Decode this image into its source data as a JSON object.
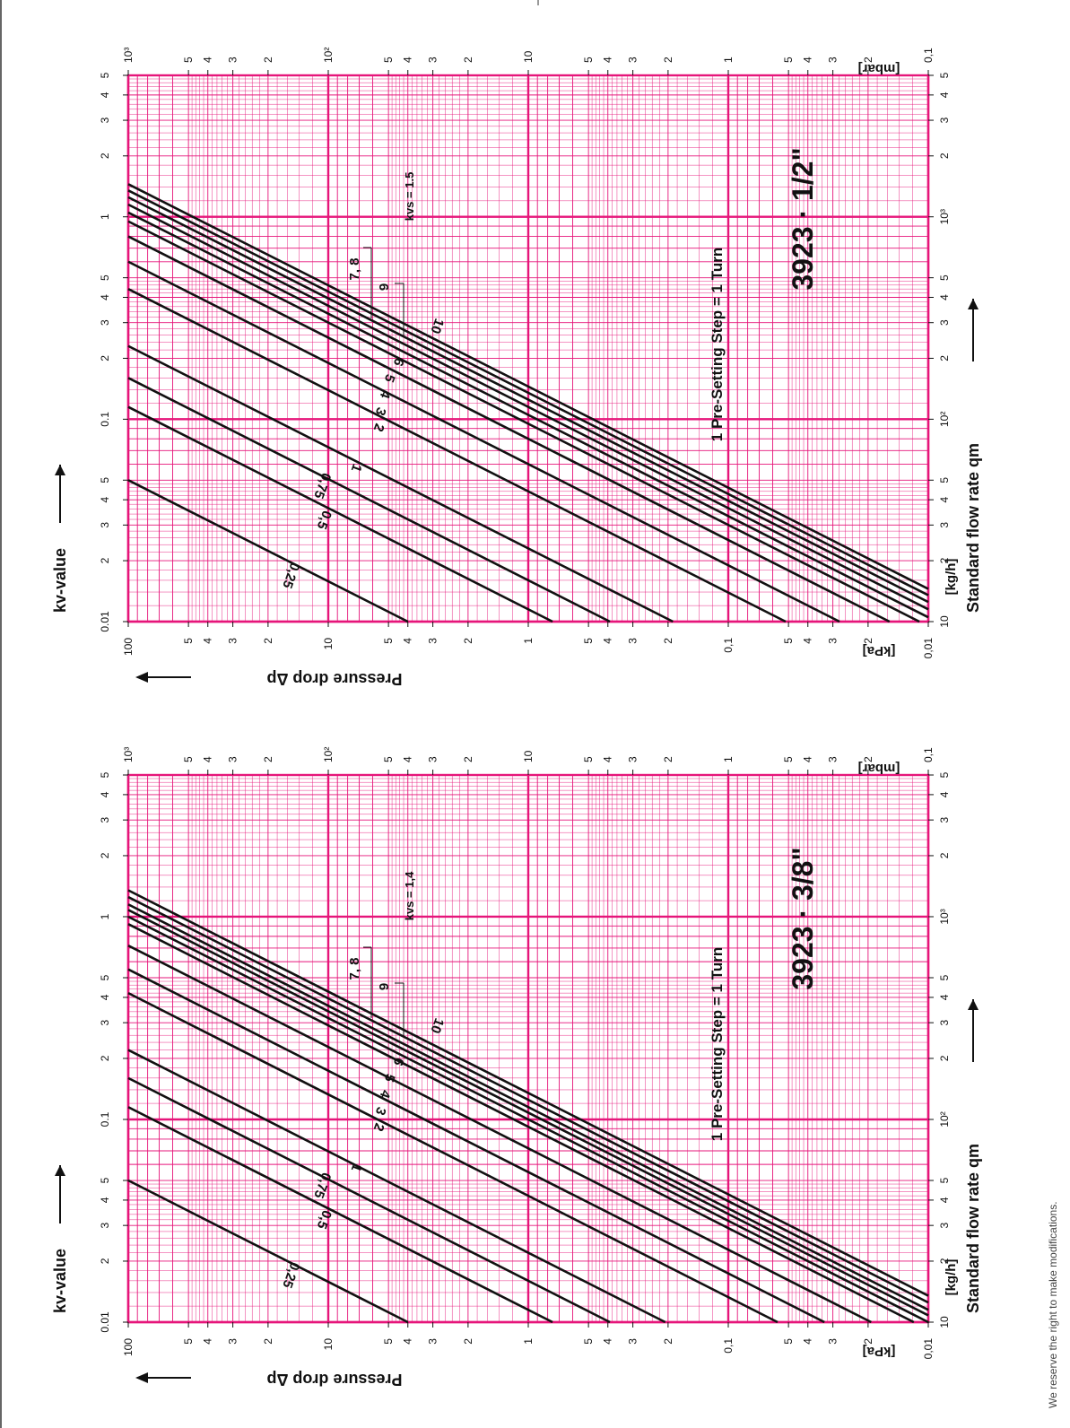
{
  "footer_note": "We reserve the right to make modifications.",
  "colors": {
    "grid": "#e6157a",
    "ink": "#111111",
    "background": "#ffffff"
  },
  "common": {
    "kv_axis_label": "kv-value",
    "flow_axis_label": "Standard flow rate qm",
    "pressure_axis_label": "Pressure drop Δp",
    "kpa_unit": "[kPa]",
    "mbar_unit": "[mbar]",
    "kgh_unit": "[kg/h]",
    "presetting_note": "1 Pre-Setting Step = 1 Turn",
    "kv_ticks": [
      "0.01",
      "2",
      "3",
      "4",
      "5",
      "0.1",
      "2",
      "3",
      "4",
      "5",
      "1",
      "2",
      "3",
      "4",
      "5"
    ],
    "flow_ticks": [
      "10",
      "2",
      "3",
      "4",
      "5",
      "10²",
      "2",
      "3",
      "4",
      "5",
      "10³",
      "2",
      "3",
      "4",
      "5"
    ],
    "kpa_ticks": [
      "100",
      "5",
      "4",
      "3",
      "2",
      "10",
      "5",
      "4",
      "3",
      "2",
      "1",
      "5",
      "4",
      "3",
      "2",
      "0,1",
      "5",
      "4",
      "3",
      "2",
      "0,01"
    ],
    "mbar_ticks": [
      "10³",
      "5",
      "4",
      "3",
      "2",
      "10²",
      "5",
      "4",
      "3",
      "2",
      "10",
      "5",
      "4",
      "3",
      "2",
      "1",
      "5",
      "4",
      "3",
      "2",
      "0,1"
    ]
  },
  "chart_data": [
    {
      "type": "line",
      "title": "3923 · 1/2\"",
      "kvs_label": "kvs = 1.5",
      "xlabel": "Standard flow rate qm [kg/h]",
      "ylabel": "Pressure drop Δp [kPa] / [mbar]",
      "x_scale": "log",
      "xlim": [
        10,
        5000
      ],
      "y_scale": "log",
      "ylim_kpa": [
        0.01,
        100
      ],
      "kv_axis": {
        "scale": "log",
        "range": [
          0.01,
          5
        ]
      },
      "series": [
        {
          "name": "0,25",
          "kv": 0.05
        },
        {
          "name": "0,5",
          "kv": 0.115
        },
        {
          "name": "0,75",
          "kv": 0.16
        },
        {
          "name": "1",
          "kv": 0.23
        },
        {
          "name": "2",
          "kv": 0.44
        },
        {
          "name": "3",
          "kv": 0.6
        },
        {
          "name": "4",
          "kv": 0.8
        },
        {
          "name": "5",
          "kv": 0.95
        },
        {
          "name": "6",
          "kv": 1.05
        },
        {
          "name": "7",
          "kv": 1.15
        },
        {
          "name": "8",
          "kv": 1.25
        },
        {
          "name": "9",
          "kv": 1.35
        },
        {
          "name": "10",
          "kv": 1.45
        }
      ],
      "annotations": [
        "7, 8",
        "9",
        "10",
        "6",
        "5",
        "4",
        "3",
        "2",
        "1",
        "0,75",
        "0,5",
        "0,25"
      ]
    },
    {
      "type": "line",
      "title": "3923 · 3/8\"",
      "kvs_label": "kvs = 1,4",
      "xlabel": "Standard flow rate qm [kg/h]",
      "ylabel": "Pressure drop Δp [kPa] / [mbar]",
      "x_scale": "log",
      "xlim": [
        10,
        5000
      ],
      "y_scale": "log",
      "ylim_kpa": [
        0.01,
        100
      ],
      "kv_axis": {
        "scale": "log",
        "range": [
          0.01,
          5
        ]
      },
      "series": [
        {
          "name": "0,25",
          "kv": 0.05
        },
        {
          "name": "0,5",
          "kv": 0.115
        },
        {
          "name": "0,75",
          "kv": 0.16
        },
        {
          "name": "1",
          "kv": 0.22
        },
        {
          "name": "2",
          "kv": 0.42
        },
        {
          "name": "3",
          "kv": 0.55
        },
        {
          "name": "4",
          "kv": 0.72
        },
        {
          "name": "5",
          "kv": 0.92
        },
        {
          "name": "6",
          "kv": 1.0
        },
        {
          "name": "7",
          "kv": 1.08
        },
        {
          "name": "8",
          "kv": 1.15
        },
        {
          "name": "9",
          "kv": 1.25
        },
        {
          "name": "10",
          "kv": 1.35
        }
      ],
      "annotations": [
        "7, 8",
        "9",
        "10",
        "6",
        "5",
        "4",
        "3",
        "2",
        "1",
        "0,75",
        "0,5",
        "0,25"
      ]
    }
  ]
}
